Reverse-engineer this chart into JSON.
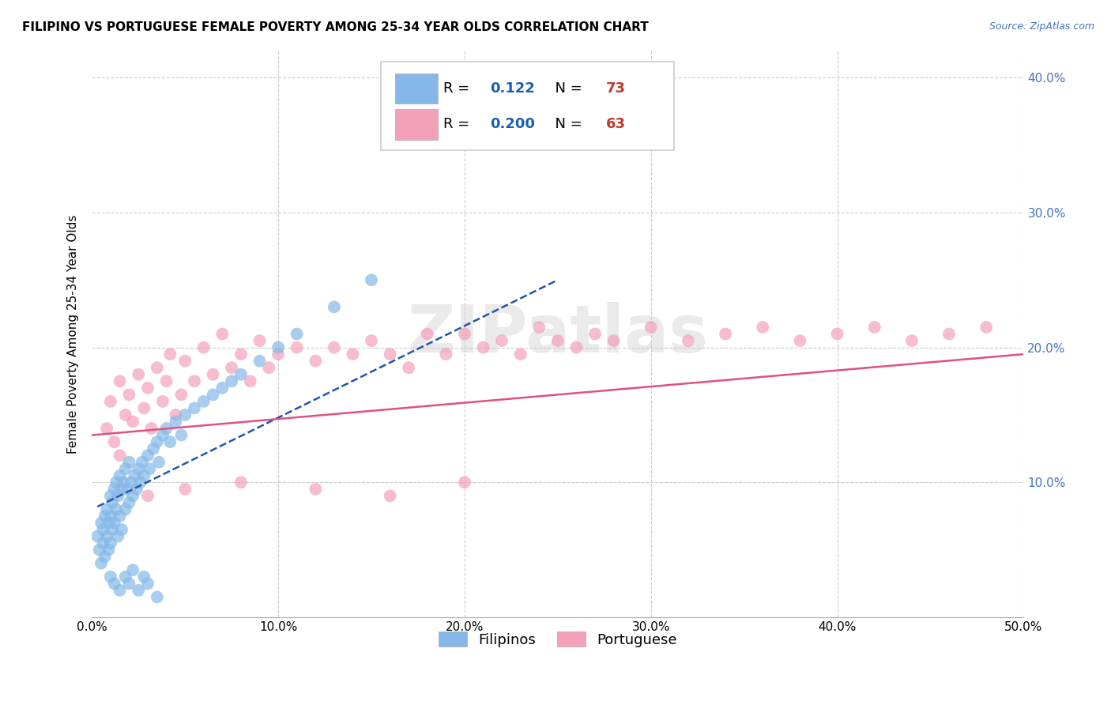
{
  "title": "FILIPINO VS PORTUGUESE FEMALE POVERTY AMONG 25-34 YEAR OLDS CORRELATION CHART",
  "source": "Source: ZipAtlas.com",
  "ylabel": "Female Poverty Among 25-34 Year Olds",
  "xlim": [
    0.0,
    0.5
  ],
  "ylim": [
    0.0,
    0.42
  ],
  "xticks": [
    0.0,
    0.1,
    0.2,
    0.3,
    0.4,
    0.5
  ],
  "yticks": [
    0.0,
    0.1,
    0.2,
    0.3,
    0.4
  ],
  "filipino_R": 0.122,
  "filipino_N": 73,
  "portuguese_R": 0.2,
  "portuguese_N": 63,
  "filipino_color": "#85b8e8",
  "portuguese_color": "#f4a0b8",
  "filipino_line_color": "#2255aa",
  "portuguese_line_color": "#e05080",
  "watermark": "ZIPatlas",
  "background_color": "#ffffff",
  "grid_color": "#cccccc",
  "legend_R_color": "#1a5fb4",
  "legend_N_color": "#c0392b",
  "filipino_scatter_x": [
    0.003,
    0.004,
    0.005,
    0.005,
    0.006,
    0.006,
    0.007,
    0.007,
    0.008,
    0.008,
    0.009,
    0.009,
    0.01,
    0.01,
    0.01,
    0.011,
    0.011,
    0.012,
    0.012,
    0.013,
    0.013,
    0.014,
    0.014,
    0.015,
    0.015,
    0.016,
    0.016,
    0.017,
    0.018,
    0.018,
    0.019,
    0.02,
    0.02,
    0.021,
    0.022,
    0.023,
    0.024,
    0.025,
    0.026,
    0.027,
    0.028,
    0.03,
    0.031,
    0.033,
    0.035,
    0.036,
    0.038,
    0.04,
    0.042,
    0.045,
    0.048,
    0.05,
    0.055,
    0.06,
    0.065,
    0.07,
    0.075,
    0.08,
    0.09,
    0.1,
    0.11,
    0.13,
    0.15,
    0.01,
    0.012,
    0.015,
    0.018,
    0.02,
    0.022,
    0.025,
    0.028,
    0.03,
    0.035
  ],
  "filipino_scatter_y": [
    0.06,
    0.05,
    0.07,
    0.04,
    0.065,
    0.055,
    0.075,
    0.045,
    0.08,
    0.06,
    0.07,
    0.05,
    0.09,
    0.075,
    0.055,
    0.085,
    0.065,
    0.095,
    0.07,
    0.1,
    0.08,
    0.09,
    0.06,
    0.105,
    0.075,
    0.095,
    0.065,
    0.1,
    0.11,
    0.08,
    0.095,
    0.115,
    0.085,
    0.1,
    0.09,
    0.105,
    0.095,
    0.11,
    0.1,
    0.115,
    0.105,
    0.12,
    0.11,
    0.125,
    0.13,
    0.115,
    0.135,
    0.14,
    0.13,
    0.145,
    0.135,
    0.15,
    0.155,
    0.16,
    0.165,
    0.17,
    0.175,
    0.18,
    0.19,
    0.2,
    0.21,
    0.23,
    0.25,
    0.03,
    0.025,
    0.02,
    0.03,
    0.025,
    0.035,
    0.02,
    0.03,
    0.025,
    0.015
  ],
  "portuguese_scatter_x": [
    0.008,
    0.01,
    0.012,
    0.015,
    0.015,
    0.018,
    0.02,
    0.022,
    0.025,
    0.028,
    0.03,
    0.032,
    0.035,
    0.038,
    0.04,
    0.042,
    0.045,
    0.048,
    0.05,
    0.055,
    0.06,
    0.065,
    0.07,
    0.075,
    0.08,
    0.085,
    0.09,
    0.095,
    0.1,
    0.11,
    0.12,
    0.13,
    0.14,
    0.15,
    0.16,
    0.17,
    0.18,
    0.19,
    0.2,
    0.21,
    0.22,
    0.23,
    0.24,
    0.25,
    0.26,
    0.27,
    0.28,
    0.3,
    0.32,
    0.34,
    0.36,
    0.38,
    0.4,
    0.42,
    0.44,
    0.46,
    0.48,
    0.03,
    0.05,
    0.08,
    0.12,
    0.16,
    0.2
  ],
  "portuguese_scatter_y": [
    0.14,
    0.16,
    0.13,
    0.175,
    0.12,
    0.15,
    0.165,
    0.145,
    0.18,
    0.155,
    0.17,
    0.14,
    0.185,
    0.16,
    0.175,
    0.195,
    0.15,
    0.165,
    0.19,
    0.175,
    0.2,
    0.18,
    0.21,
    0.185,
    0.195,
    0.175,
    0.205,
    0.185,
    0.195,
    0.2,
    0.19,
    0.2,
    0.195,
    0.205,
    0.195,
    0.185,
    0.21,
    0.195,
    0.21,
    0.2,
    0.205,
    0.195,
    0.215,
    0.205,
    0.2,
    0.21,
    0.205,
    0.215,
    0.205,
    0.21,
    0.215,
    0.205,
    0.21,
    0.215,
    0.205,
    0.21,
    0.215,
    0.09,
    0.095,
    0.1,
    0.095,
    0.09,
    0.1
  ]
}
